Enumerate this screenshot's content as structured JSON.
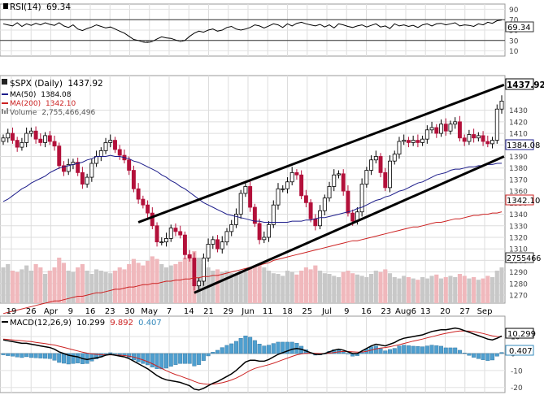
{
  "chart_data": [
    {
      "type": "line",
      "label": "RSI(14)",
      "value": "69.34",
      "ylim": [
        0,
        100
      ],
      "yticks": [
        90,
        70,
        50,
        30,
        10
      ],
      "reference_lines": [
        70,
        30
      ],
      "series": [
        {
          "name": "RSI(14)",
          "values": [
            62,
            60,
            58,
            64,
            57,
            62,
            59,
            63,
            60,
            64,
            61,
            59,
            64,
            58,
            55,
            60,
            52,
            49,
            53,
            56,
            60,
            57,
            54,
            56,
            52,
            48,
            44,
            38,
            32,
            30,
            27,
            26,
            28,
            33,
            37,
            35,
            34,
            31,
            28,
            30,
            38,
            44,
            48,
            46,
            50,
            52,
            48,
            50,
            55,
            57,
            52,
            50,
            52,
            55,
            60,
            58,
            54,
            58,
            62,
            60,
            55,
            62,
            58,
            63,
            65,
            62,
            60,
            58,
            61,
            56,
            60,
            54,
            62,
            60,
            57,
            55,
            58,
            60,
            56,
            59,
            62,
            56,
            58,
            53,
            62,
            58,
            60,
            57,
            59,
            55,
            60,
            62,
            58,
            62,
            63,
            60,
            62,
            64,
            58,
            60,
            59,
            57,
            62,
            60,
            65,
            63,
            68,
            69.34
          ]
        }
      ]
    },
    {
      "type": "candlestick",
      "label": "$SPX (Daily)",
      "last": "1437.92",
      "legend": [
        {
          "name": "MA(50)",
          "value": "1384.08",
          "color": "#1c1c8a"
        },
        {
          "name": "MA(200)",
          "value": "1342.10",
          "color": "#cc2222"
        },
        {
          "name": "Volume",
          "value": "2,755,466,496",
          "color": "#999999"
        }
      ],
      "ylim": [
        1263,
        1460
      ],
      "yticks": [
        1430,
        1420,
        1410,
        1400,
        1390,
        1380,
        1370,
        1360,
        1350,
        1340,
        1330,
        1320,
        1310,
        1300,
        1290,
        1280,
        1270
      ],
      "xticks": [
        "19",
        "26",
        "Apr",
        "9",
        "16",
        "23",
        "30",
        "May",
        "7",
        "14",
        "21",
        "29",
        "Jun",
        "11",
        "18",
        "25",
        "Jul",
        "9",
        "16",
        "23",
        "Aug6",
        "13",
        "20",
        "27",
        "Sep"
      ],
      "price_labels": {
        "last": "1437.92",
        "ma50": "1384.08",
        "ma200": "1342.10",
        "volume": "2755466"
      },
      "close": [
        1406,
        1410,
        1404,
        1398,
        1402,
        1410,
        1412,
        1405,
        1402,
        1408,
        1403,
        1399,
        1382,
        1377,
        1383,
        1385,
        1376,
        1366,
        1372,
        1384,
        1390,
        1395,
        1402,
        1404,
        1396,
        1391,
        1387,
        1378,
        1362,
        1353,
        1348,
        1341,
        1330,
        1316,
        1316,
        1319,
        1328,
        1325,
        1322,
        1305,
        1302,
        1278,
        1282,
        1302,
        1314,
        1318,
        1310,
        1316,
        1325,
        1331,
        1340,
        1358,
        1364,
        1346,
        1332,
        1318,
        1320,
        1331,
        1348,
        1362,
        1362,
        1368,
        1376,
        1374,
        1356,
        1350,
        1336,
        1330,
        1343,
        1354,
        1364,
        1374,
        1375,
        1360,
        1341,
        1334,
        1342,
        1366,
        1378,
        1387,
        1390,
        1376,
        1363,
        1386,
        1392,
        1403,
        1404,
        1402,
        1404,
        1402,
        1405,
        1413,
        1415,
        1410,
        1418,
        1412,
        1418,
        1420,
        1406,
        1403,
        1409,
        1406,
        1408,
        1403,
        1401,
        1404,
        1431,
        1437.92
      ],
      "ma50": [
        1351,
        1353,
        1356,
        1359,
        1362,
        1364,
        1367,
        1369,
        1371,
        1373,
        1376,
        1378,
        1380,
        1381,
        1382,
        1383,
        1384,
        1385,
        1387,
        1388,
        1390,
        1390,
        1390,
        1391,
        1390,
        1390,
        1389,
        1388,
        1386,
        1385,
        1383,
        1381,
        1379,
        1377,
        1374,
        1372,
        1369,
        1367,
        1364,
        1362,
        1359,
        1356,
        1353,
        1350,
        1348,
        1346,
        1344,
        1342,
        1340,
        1339,
        1338,
        1337,
        1336,
        1335,
        1334,
        1334,
        1333,
        1333,
        1333,
        1333,
        1333,
        1333,
        1334,
        1334,
        1334,
        1335,
        1335,
        1336,
        1337,
        1337,
        1338,
        1339,
        1340,
        1341,
        1342,
        1343,
        1345,
        1346,
        1348,
        1350,
        1352,
        1353,
        1355,
        1356,
        1358,
        1360,
        1361,
        1363,
        1365,
        1367,
        1368,
        1370,
        1372,
        1374,
        1375,
        1376,
        1378,
        1379,
        1379,
        1380,
        1381,
        1381,
        1382,
        1382,
        1383,
        1383,
        1384,
        1384.08
      ],
      "ma200": [
        1254,
        1255,
        1256,
        1257,
        1258,
        1259,
        1260,
        1261,
        1262,
        1263,
        1264,
        1265,
        1265,
        1266,
        1267,
        1268,
        1269,
        1269,
        1270,
        1271,
        1272,
        1272,
        1273,
        1274,
        1275,
        1275,
        1276,
        1277,
        1277,
        1278,
        1279,
        1279,
        1280,
        1280,
        1281,
        1282,
        1282,
        1283,
        1283,
        1284,
        1284,
        1285,
        1285,
        1286,
        1286,
        1287,
        1287,
        1288,
        1289,
        1290,
        1291,
        1292,
        1293,
        1294,
        1295,
        1296,
        1297,
        1298,
        1300,
        1301,
        1302,
        1303,
        1304,
        1305,
        1306,
        1307,
        1308,
        1309,
        1310,
        1311,
        1312,
        1313,
        1314,
        1315,
        1316,
        1317,
        1317,
        1318,
        1319,
        1320,
        1321,
        1322,
        1323,
        1324,
        1325,
        1326,
        1327,
        1328,
        1329,
        1329,
        1330,
        1331,
        1332,
        1333,
        1333,
        1334,
        1335,
        1336,
        1336,
        1337,
        1338,
        1339,
        1339,
        1340,
        1340,
        1341,
        1341,
        1342.1
      ],
      "volume": [
        0.55,
        0.6,
        0.5,
        0.48,
        0.52,
        0.58,
        0.5,
        0.6,
        0.55,
        0.45,
        0.5,
        0.55,
        0.7,
        0.62,
        0.5,
        0.48,
        0.55,
        0.6,
        0.5,
        0.45,
        0.52,
        0.5,
        0.48,
        0.46,
        0.5,
        0.55,
        0.52,
        0.6,
        0.68,
        0.62,
        0.58,
        0.65,
        0.72,
        0.68,
        0.6,
        0.55,
        0.58,
        0.6,
        0.64,
        0.7,
        0.75,
        0.8,
        0.7,
        0.6,
        0.55,
        0.5,
        0.52,
        0.48,
        0.5,
        0.46,
        0.45,
        0.5,
        0.48,
        0.55,
        0.58,
        0.6,
        0.55,
        0.5,
        0.46,
        0.45,
        0.42,
        0.5,
        0.48,
        0.44,
        0.5,
        0.55,
        0.52,
        0.58,
        0.5,
        0.46,
        0.45,
        0.42,
        0.4,
        0.48,
        0.5,
        0.46,
        0.44,
        0.42,
        0.4,
        0.45,
        0.5,
        0.48,
        0.52,
        0.46,
        0.4,
        0.38,
        0.42,
        0.4,
        0.38,
        0.36,
        0.4,
        0.38,
        0.42,
        0.44,
        0.38,
        0.4,
        0.42,
        0.4,
        0.45,
        0.42,
        0.38,
        0.4,
        0.36,
        0.38,
        0.42,
        0.4,
        0.5,
        0.55
      ],
      "trendlines": [
        {
          "from": [
            29,
            1333
          ],
          "to": [
            107.5,
            1452
          ]
        },
        {
          "from": [
            41,
            1272
          ],
          "to": [
            107.5,
            1390
          ]
        }
      ]
    },
    {
      "type": "line",
      "label": "MACD(12,26,9)",
      "values_label": [
        "10.299",
        "9.892",
        "0.407"
      ],
      "ylim": [
        -23,
        22
      ],
      "yticks": [
        10,
        0,
        -10,
        -20
      ],
      "price_labels": {
        "macd": "10.299",
        "histogram": "0.407"
      },
      "series": [
        {
          "name": "MACD",
          "color": "#000000",
          "values": [
            8,
            7.5,
            7,
            6.5,
            6,
            6,
            5.5,
            5,
            4.5,
            4,
            3.5,
            2.5,
            1,
            0,
            -1,
            -1.5,
            -2,
            -3,
            -3.5,
            -3,
            -2.5,
            -2,
            -1,
            -0.5,
            -1,
            -1.5,
            -2,
            -3,
            -4.5,
            -6,
            -7.5,
            -9,
            -11,
            -13,
            -14.5,
            -15.5,
            -16,
            -16.5,
            -17,
            -18,
            -19,
            -21,
            -21.5,
            -20.5,
            -19,
            -17.5,
            -16.5,
            -15,
            -13.5,
            -12,
            -10,
            -7.5,
            -5,
            -4,
            -4,
            -4.5,
            -4.5,
            -3.5,
            -2,
            -0.5,
            0.5,
            1.5,
            2.5,
            3,
            2.5,
            1.5,
            0.5,
            -0.5,
            -0.5,
            0,
            1,
            2,
            2.5,
            2,
            1,
            0,
            0,
            1.5,
            3,
            4.5,
            5.5,
            5,
            4.5,
            5.5,
            6.5,
            8,
            9,
            9.5,
            10,
            10.5,
            11,
            12,
            13,
            13.5,
            14,
            14,
            14.5,
            15,
            14.5,
            13.5,
            12.5,
            11.5,
            10.5,
            9.5,
            8.5,
            8,
            9,
            10.299
          ]
        },
        {
          "name": "Signal",
          "color": "#cc2222",
          "values": [
            8.5,
            8.3,
            8,
            7.8,
            7.5,
            7.2,
            7,
            6.6,
            6.2,
            5.8,
            5.4,
            5,
            4.3,
            3.6,
            2.9,
            2.2,
            1.5,
            0.8,
            0.2,
            -0.2,
            -0.5,
            -0.7,
            -0.8,
            -0.8,
            -0.9,
            -1,
            -1.2,
            -1.6,
            -2.1,
            -2.9,
            -3.8,
            -4.8,
            -6,
            -7.4,
            -8.8,
            -10.1,
            -11.3,
            -12.4,
            -13.3,
            -14.3,
            -15.3,
            -16.4,
            -17.4,
            -17.9,
            -18.1,
            -18,
            -17.7,
            -17.2,
            -16.5,
            -15.6,
            -14.5,
            -13.1,
            -11.5,
            -10,
            -8.8,
            -8,
            -7.3,
            -6.6,
            -5.7,
            -4.7,
            -3.7,
            -2.7,
            -1.7,
            -0.8,
            -0.2,
            0.1,
            0.2,
            0.1,
            0,
            0,
            0.2,
            0.6,
            1,
            1.2,
            1.2,
            1,
            0.8,
            0.9,
            1.3,
            2,
            2.7,
            3.2,
            3.5,
            4,
            4.6,
            5.2,
            5.9,
            6.6,
            7.3,
            7.9,
            8.5,
            9.2,
            9.9,
            10.6,
            11.3,
            11.9,
            12.4,
            12.9,
            13.3,
            13.3,
            13.2,
            12.9,
            12.4,
            11.8,
            11.1,
            10.4,
            10,
            9.892
          ]
        }
      ]
    }
  ]
}
